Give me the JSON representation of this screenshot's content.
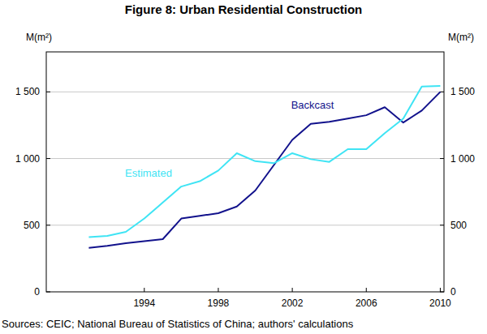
{
  "chart_data": {
    "type": "line",
    "title": "Figure 8: Urban Residential Construction",
    "y_label": "M(m²)",
    "y2_label": "M(m²)",
    "note": "Sources:  CEIC; National Bureau of Statistics of China; authors' calculations",
    "x": [
      1991,
      1992,
      1993,
      1994,
      1995,
      1996,
      1997,
      1998,
      1999,
      2000,
      2001,
      2002,
      2003,
      2004,
      2005,
      2006,
      2007,
      2008,
      2009,
      2010
    ],
    "series": [
      {
        "name": "Backcast",
        "color": "#12128c",
        "values": [
          330,
          345,
          365,
          380,
          395,
          550,
          570,
          590,
          640,
          760,
          950,
          1140,
          1260,
          1275,
          1300,
          1325,
          1385,
          1270,
          1360,
          1500
        ]
      },
      {
        "name": "Estimated",
        "color": "#3fe4f4",
        "values": [
          410,
          420,
          450,
          550,
          670,
          790,
          830,
          910,
          1040,
          980,
          965,
          1040,
          995,
          975,
          1070,
          1070,
          1190,
          1300,
          1540,
          1545
        ]
      }
    ],
    "xlim": [
      1988.7,
      2010.2
    ],
    "xticks": [
      1994,
      1998,
      2002,
      2006,
      2010
    ],
    "ylim": [
      0,
      1800
    ],
    "yticks": [
      0,
      500,
      {
        "value": 1000,
        "label": "1 000"
      },
      {
        "value": 1500,
        "label": "1 500"
      }
    ],
    "y2lim": [
      0,
      1800
    ],
    "y2ticks": [
      0,
      500,
      {
        "value": 1000,
        "label": "1 000"
      },
      {
        "value": 1500,
        "label": "1 500"
      }
    ],
    "grid": true
  }
}
